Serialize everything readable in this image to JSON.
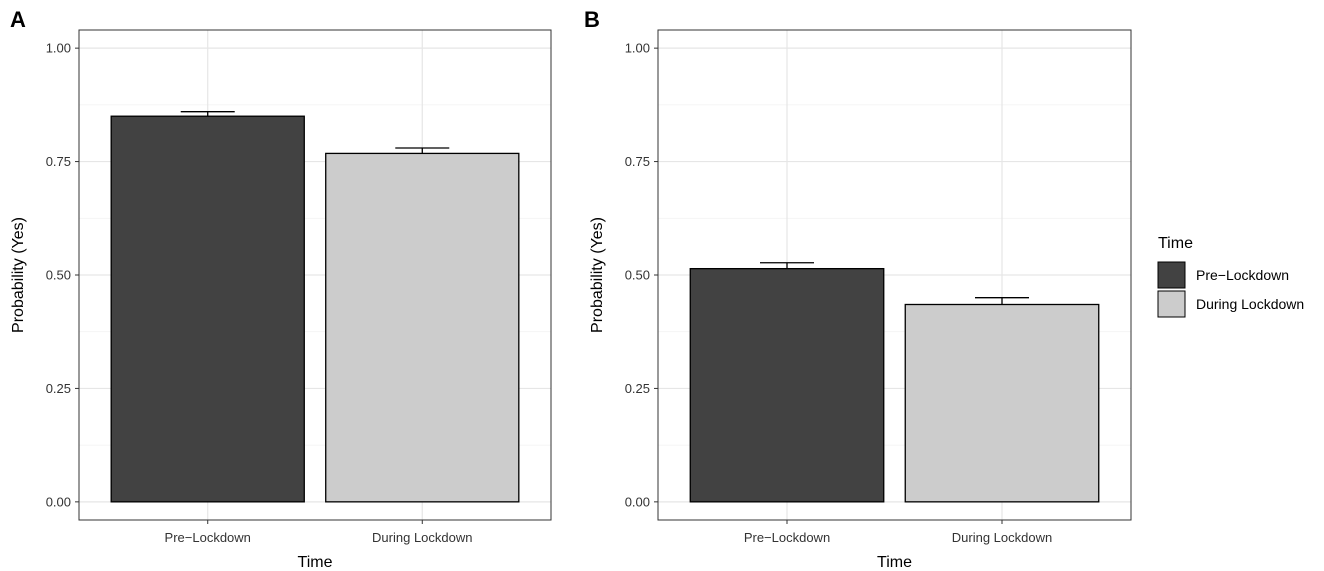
{
  "chart_data": [
    {
      "type": "bar",
      "panel_label": "A",
      "categories": [
        "Pre−Lockdown",
        "During Lockdown"
      ],
      "values": [
        0.85,
        0.768
      ],
      "error_upper": [
        0.86,
        0.78
      ],
      "colors": [
        "#424242",
        "#cccccc"
      ],
      "xlabel": "Time",
      "ylabel": "Probability (Yes)",
      "ylim": [
        -0.04,
        1.04
      ],
      "yticks": [
        0.0,
        0.25,
        0.5,
        0.75,
        1.0
      ],
      "ytick_labels": [
        "0.00",
        "0.25",
        "0.50",
        "0.75",
        "1.00"
      ],
      "grid": true
    },
    {
      "type": "bar",
      "panel_label": "B",
      "categories": [
        "Pre−Lockdown",
        "During Lockdown"
      ],
      "values": [
        0.514,
        0.435
      ],
      "error_upper": [
        0.527,
        0.45
      ],
      "colors": [
        "#424242",
        "#cccccc"
      ],
      "xlabel": "Time",
      "ylabel": "Probability (Yes)",
      "ylim": [
        -0.04,
        1.04
      ],
      "yticks": [
        0.0,
        0.25,
        0.5,
        0.75,
        1.0
      ],
      "ytick_labels": [
        "0.00",
        "0.25",
        "0.50",
        "0.75",
        "1.00"
      ],
      "grid": true
    }
  ],
  "legend": {
    "title": "Time",
    "placement": "right",
    "items": [
      {
        "label": "Pre−Lockdown",
        "color": "#424242"
      },
      {
        "label": "During Lockdown",
        "color": "#cccccc"
      }
    ]
  }
}
